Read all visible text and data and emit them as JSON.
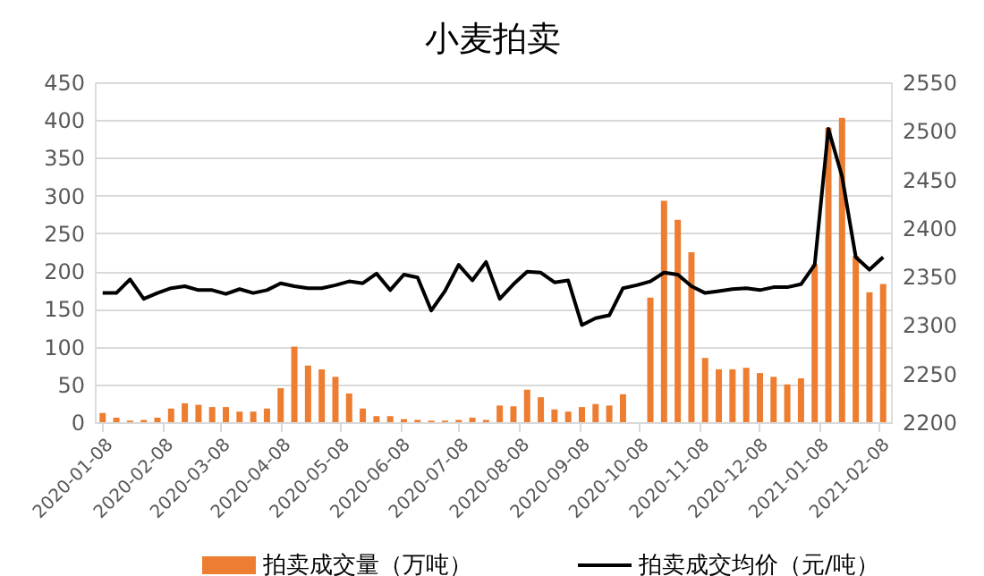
{
  "chart_data": {
    "type": "bar",
    "title": "小麦拍卖",
    "x": [
      "2020-01-08",
      "2020-01-15",
      "2020-01-22",
      "2020-01-29",
      "2020-02-05",
      "2020-02-12",
      "2020-02-19",
      "2020-02-26",
      "2020-03-04",
      "2020-03-11",
      "2020-03-18",
      "2020-03-25",
      "2020-04-01",
      "2020-04-08",
      "2020-04-15",
      "2020-04-22",
      "2020-04-29",
      "2020-05-06",
      "2020-05-13",
      "2020-05-20",
      "2020-05-27",
      "2020-06-03",
      "2020-06-10",
      "2020-06-17",
      "2020-06-24",
      "2020-07-01",
      "2020-07-08",
      "2020-07-15",
      "2020-07-22",
      "2020-07-29",
      "2020-08-05",
      "2020-08-12",
      "2020-08-19",
      "2020-08-26",
      "2020-09-02",
      "2020-09-09",
      "2020-09-16",
      "2020-09-23",
      "2020-09-30",
      "2020-10-07",
      "2020-10-14",
      "2020-10-21",
      "2020-10-28",
      "2020-11-04",
      "2020-11-11",
      "2020-11-18",
      "2020-11-25",
      "2020-12-02",
      "2020-12-09",
      "2020-12-16",
      "2020-12-23",
      "2020-12-30",
      "2021-01-06",
      "2021-01-13",
      "2021-01-20",
      "2021-01-27",
      "2021-02-03",
      "2021-02-10"
    ],
    "series": [
      {
        "name": "拍卖成交量（万吨）",
        "color": "#ed7d31",
        "values": [
          12,
          6,
          2,
          3,
          6,
          18,
          25,
          23,
          20,
          20,
          14,
          14,
          18,
          45,
          100,
          75,
          70,
          60,
          38,
          18,
          8,
          8,
          4,
          3,
          2,
          2,
          3,
          6,
          3,
          22,
          21,
          43,
          33,
          17,
          14,
          20,
          24,
          22,
          37,
          null,
          165,
          293,
          268,
          225,
          85,
          70,
          70,
          72,
          65,
          60,
          50,
          58,
          209,
          390,
          403,
          220,
          172,
          183
        ]
      },
      {
        "name": "拍卖成交均价（元/吨）",
        "type": "line",
        "axis": "y2",
        "color": "#000000",
        "values": [
          2333,
          2333,
          2347,
          2327,
          2333,
          2338,
          2340,
          2336,
          2336,
          2332,
          2337,
          2333,
          2336,
          2343,
          2340,
          2338,
          2338,
          2341,
          2345,
          2343,
          2353,
          2336,
          2352,
          2349,
          2315,
          2335,
          2362,
          2346,
          2365,
          2327,
          2342,
          2355,
          2354,
          2344,
          2346,
          2300,
          2307,
          2310,
          2338,
          2341,
          2345,
          2354,
          2352,
          2340,
          2333,
          2335,
          2337,
          2338,
          2336,
          2339,
          2339,
          2342,
          2362,
          2502,
          2453,
          2370,
          2357,
          2370
        ]
      }
    ],
    "xlim": [
      "2020-01-04",
      "2021-02-14"
    ],
    "xticks": [
      "2020-01-08",
      "2020-02-08",
      "2020-03-08",
      "2020-04-08",
      "2020-05-08",
      "2020-06-08",
      "2020-07-08",
      "2020-08-08",
      "2020-09-08",
      "2020-10-08",
      "2020-11-08",
      "2020-12-08",
      "2021-01-08",
      "2021-02-08"
    ],
    "ylim": [
      0,
      450
    ],
    "yticks": [
      0,
      50,
      100,
      150,
      200,
      250,
      300,
      350,
      400,
      450
    ],
    "y2lim": [
      2200,
      2550
    ],
    "y2ticks": [
      2200,
      2250,
      2300,
      2350,
      2400,
      2450,
      2500,
      2550
    ],
    "grid": "y",
    "legend": "bottom",
    "line_style": "solid",
    "marker": "none"
  }
}
